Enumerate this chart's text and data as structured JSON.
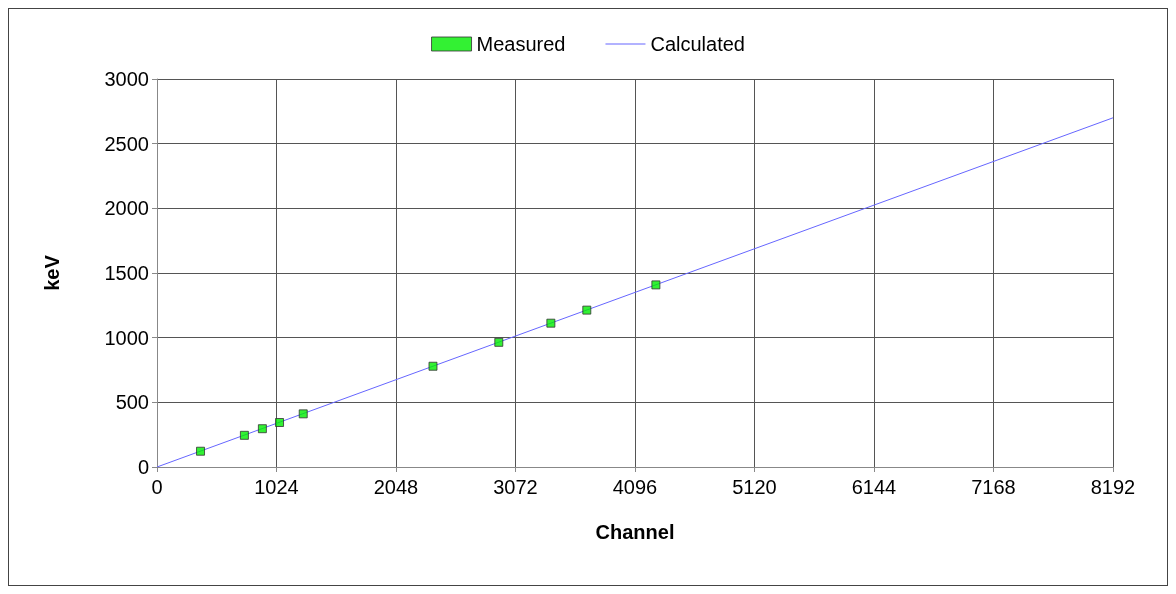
{
  "chart_data": {
    "type": "scatter",
    "xlabel": "Channel",
    "ylabel": "keV",
    "series": [
      {
        "name": "Measured",
        "color": "#00ee00",
        "marker": "square",
        "x": [
          373,
          749,
          903,
          1050,
          1253,
          2365,
          2929,
          3375,
          3683,
          4275
        ],
        "values": [
          122,
          245,
          296,
          344,
          411,
          779,
          964,
          1112,
          1213,
          1408
        ]
      },
      {
        "name": "Calculated",
        "type": "line",
        "color": "#6666ff",
        "marker": "none",
        "line_style": "solid",
        "x": [
          0,
          8192
        ],
        "values": [
          0,
          2700
        ]
      }
    ],
    "xlim": [
      0,
      8192
    ],
    "xticks": [
      0,
      1024,
      2048,
      3072,
      4096,
      5120,
      6144,
      7168,
      8192
    ],
    "ylim": [
      0,
      3000
    ],
    "yticks": [
      0,
      500,
      1000,
      1500,
      2000,
      2500,
      3000
    ],
    "grid": true,
    "legend": "top"
  }
}
